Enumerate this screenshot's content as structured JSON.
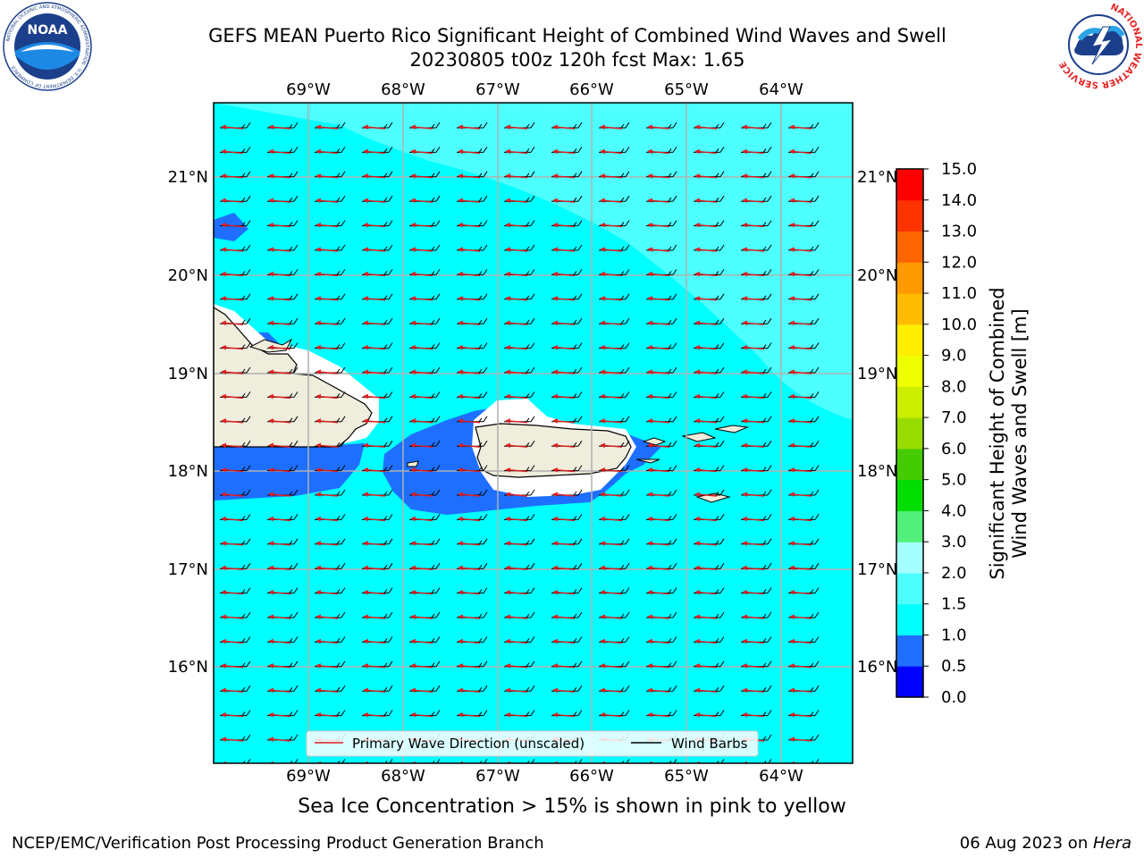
{
  "title_line1": "GEFS MEAN Puerto Rico Significant Height of Combined Wind Waves and Swell",
  "title_line2": "20230805 t00z 120h fcst   Max: 1.65",
  "noaa_logo_text": "NOAA",
  "noaa_ring_text": "NATIONAL OCEANIC AND ATMOSPHERIC ADMINISTRATION · U.S. DEPARTMENT OF COMMERCE",
  "nws_ring_text": "NATIONAL WEATHER SERVICE",
  "longitude_labels": [
    "69°W",
    "68°W",
    "67°W",
    "66°W",
    "65°W",
    "64°W"
  ],
  "latitude_labels": [
    "21°N",
    "20°N",
    "19°N",
    "18°N",
    "17°N",
    "16°N"
  ],
  "legend": {
    "wave_direction": "Primary Wave Direction (unscaled)",
    "wind_barbs": "Wind Barbs"
  },
  "colorbar": {
    "label_line1": "Significant Height of Combined",
    "label_line2": "Wind Waves and Swell [m]",
    "ticks": [
      "0.0",
      "0.5",
      "1.0",
      "1.5",
      "2.0",
      "3.0",
      "4.0",
      "5.0",
      "6.0",
      "7.0",
      "8.0",
      "9.0",
      "10.0",
      "11.0",
      "12.0",
      "13.0",
      "14.0",
      "15.0"
    ],
    "colors": [
      "#0000ff",
      "#1e6fff",
      "#00ffff",
      "#4dffff",
      "#a6ffff",
      "#50f07a",
      "#00dd00",
      "#44cc00",
      "#99dd00",
      "#ccee00",
      "#eeff00",
      "#ffee00",
      "#ffbb00",
      "#ff9900",
      "#ff6600",
      "#ff3300",
      "#ff0000"
    ]
  },
  "caption": "Sea Ice Concentration > 15% is shown in pink to yellow",
  "footer_left": "NCEP/EMC/Verification Post Processing Product Generation Branch",
  "footer_right_prefix": "06 Aug 2023 on ",
  "footer_right_host": "Hera"
}
